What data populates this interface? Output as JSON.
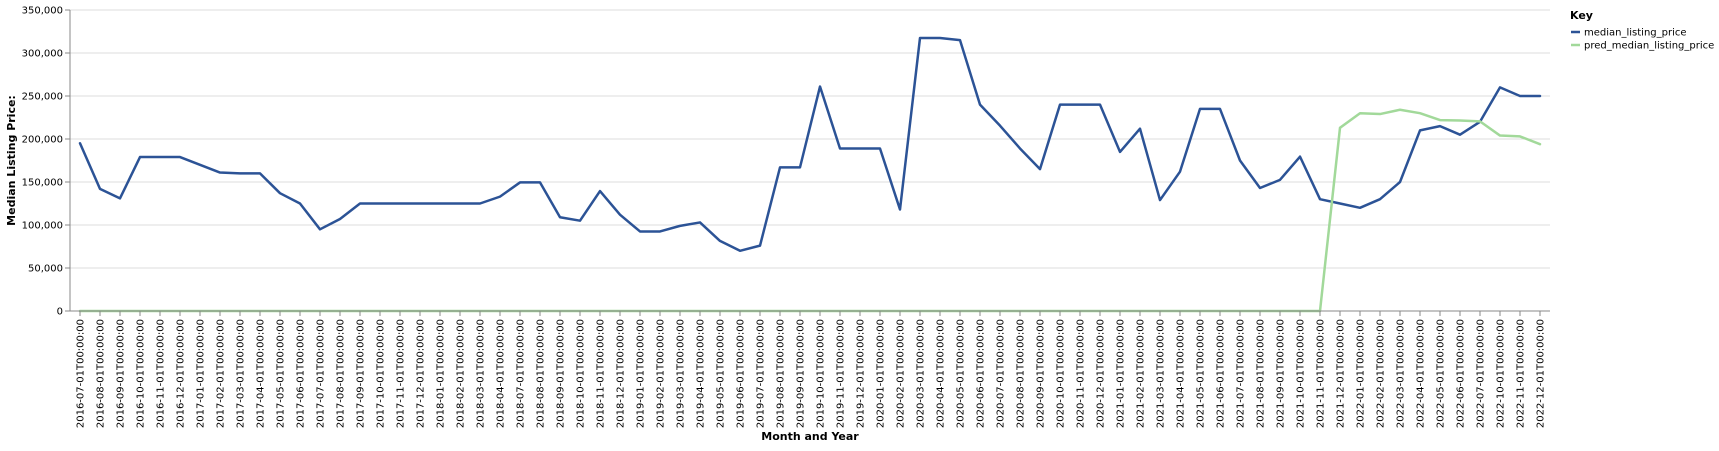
{
  "chart_data": {
    "type": "line",
    "xlabel": "Month and Year",
    "ylabel": "Median Listing Price:",
    "ylim": [
      0,
      350000
    ],
    "yticks": [
      0,
      50000,
      100000,
      150000,
      200000,
      250000,
      300000,
      350000
    ],
    "ytick_labels": [
      "0",
      "50,000",
      "100,000",
      "150,000",
      "200,000",
      "250,000",
      "300,000",
      "350,000"
    ],
    "grid": true,
    "legend": {
      "title": "Key",
      "placement": "right"
    },
    "categories": [
      "2016-07-01T00:00:00",
      "2016-08-01T00:00:00",
      "2016-09-01T00:00:00",
      "2016-10-01T00:00:00",
      "2016-11-01T00:00:00",
      "2016-12-01T00:00:00",
      "2017-01-01T00:00:00",
      "2017-02-01T00:00:00",
      "2017-03-01T00:00:00",
      "2017-04-01T00:00:00",
      "2017-05-01T00:00:00",
      "2017-06-01T00:00:00",
      "2017-07-01T00:00:00",
      "2017-08-01T00:00:00",
      "2017-09-01T00:00:00",
      "2017-10-01T00:00:00",
      "2017-11-01T00:00:00",
      "2017-12-01T00:00:00",
      "2018-01-01T00:00:00",
      "2018-02-01T00:00:00",
      "2018-03-01T00:00:00",
      "2018-04-01T00:00:00",
      "2018-07-01T00:00:00",
      "2018-08-01T00:00:00",
      "2018-09-01T00:00:00",
      "2018-10-01T00:00:00",
      "2018-11-01T00:00:00",
      "2018-12-01T00:00:00",
      "2019-01-01T00:00:00",
      "2019-02-01T00:00:00",
      "2019-03-01T00:00:00",
      "2019-04-01T00:00:00",
      "2019-05-01T00:00:00",
      "2019-06-01T00:00:00",
      "2019-07-01T00:00:00",
      "2019-08-01T00:00:00",
      "2019-09-01T00:00:00",
      "2019-10-01T00:00:00",
      "2019-11-01T00:00:00",
      "2019-12-01T00:00:00",
      "2020-01-01T00:00:00",
      "2020-02-01T00:00:00",
      "2020-03-01T00:00:00",
      "2020-04-01T00:00:00",
      "2020-05-01T00:00:00",
      "2020-06-01T00:00:00",
      "2020-07-01T00:00:00",
      "2020-08-01T00:00:00",
      "2020-09-01T00:00:00",
      "2020-10-01T00:00:00",
      "2020-11-01T00:00:00",
      "2020-12-01T00:00:00",
      "2021-01-01T00:00:00",
      "2021-02-01T00:00:00",
      "2021-03-01T00:00:00",
      "2021-04-01T00:00:00",
      "2021-05-01T00:00:00",
      "2021-06-01T00:00:00",
      "2021-07-01T00:00:00",
      "2021-08-01T00:00:00",
      "2021-09-01T00:00:00",
      "2021-10-01T00:00:00",
      "2021-11-01T00:00:00",
      "2021-12-01T00:00:00",
      "2022-01-01T00:00:00",
      "2022-02-01T00:00:00",
      "2022-03-01T00:00:00",
      "2022-04-01T00:00:00",
      "2022-05-01T00:00:00",
      "2022-06-01T00:00:00",
      "2022-07-01T00:00:00",
      "2022-10-01T00:00:00",
      "2022-11-01T00:00:00",
      "2022-12-01T00:00:00"
    ],
    "series": [
      {
        "name": "median_listing_price",
        "color": "#2c5396",
        "values": [
          195000,
          142000,
          131000,
          179000,
          179000,
          179000,
          170000,
          161000,
          160000,
          160000,
          137000,
          125000,
          95000,
          107000,
          125000,
          125000,
          125000,
          125000,
          125000,
          125000,
          125000,
          133000,
          149500,
          149500,
          109000,
          105000,
          139500,
          112000,
          92500,
          92500,
          99000,
          103000,
          81500,
          70000,
          76000,
          167000,
          167000,
          261000,
          189000,
          189000,
          189000,
          118000,
          317500,
          317500,
          315000,
          240000,
          215500,
          189000,
          165000,
          240000,
          240000,
          240000,
          185000,
          212000,
          129000,
          162000,
          235000,
          235000,
          175000,
          143000,
          152500,
          179500,
          130000,
          125000,
          120000,
          130000,
          150000,
          210000,
          215000,
          205000,
          220000,
          260000,
          250000,
          250000
        ]
      },
      {
        "name": "pred_median_listing_price",
        "color": "#a2d99a",
        "values": [
          0,
          0,
          0,
          0,
          0,
          0,
          0,
          0,
          0,
          0,
          0,
          0,
          0,
          0,
          0,
          0,
          0,
          0,
          0,
          0,
          0,
          0,
          0,
          0,
          0,
          0,
          0,
          0,
          0,
          0,
          0,
          0,
          0,
          0,
          0,
          0,
          0,
          0,
          0,
          0,
          0,
          0,
          0,
          0,
          0,
          0,
          0,
          0,
          0,
          0,
          0,
          0,
          0,
          0,
          0,
          0,
          0,
          0,
          0,
          0,
          0,
          0,
          0,
          213000,
          230000,
          229000,
          234000,
          230000,
          222000,
          221500,
          220500,
          204000,
          203000,
          194000
        ]
      }
    ]
  }
}
